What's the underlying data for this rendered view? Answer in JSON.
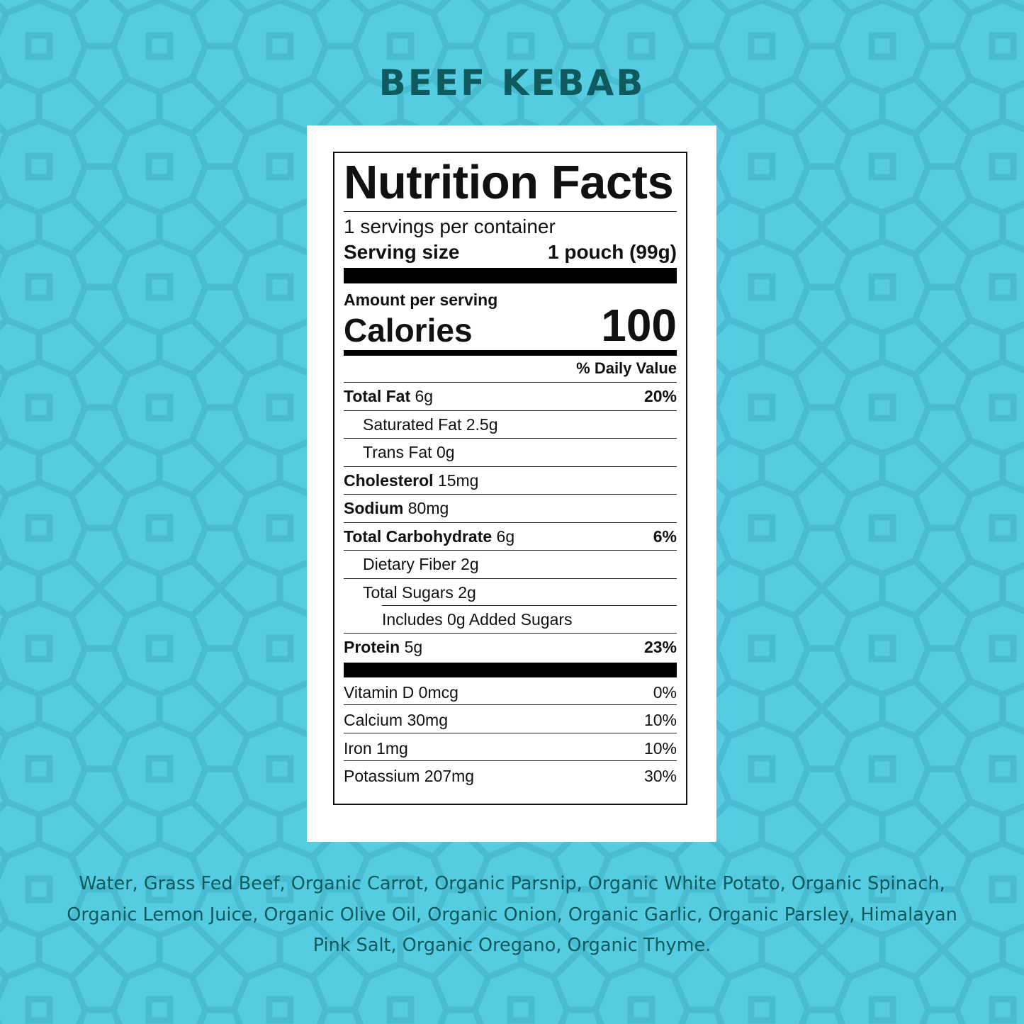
{
  "product_title": "BEEF KEBAB",
  "colors": {
    "background": "#55cce0",
    "pattern": "#48bdd2",
    "title_text": "#0e5a5f"
  },
  "nutrition": {
    "title": "Nutrition Facts",
    "servings_per_container": "1 servings per container",
    "serving_size_label": "Serving size",
    "serving_size_value": "1 pouch (99g)",
    "amount_per_serving": "Amount per serving",
    "calories_label": "Calories",
    "calories_value": "100",
    "daily_value_header": "% Daily Value",
    "nutrients": [
      {
        "name": "Total Fat",
        "amount": "6g",
        "dv": "20%"
      },
      {
        "name": "Saturated Fat",
        "amount": "2.5g",
        "dv": ""
      },
      {
        "name": "Trans Fat",
        "amount": "0g",
        "dv": ""
      },
      {
        "name": "Cholesterol",
        "amount": "15mg",
        "dv": ""
      },
      {
        "name": "Sodium",
        "amount": "80mg",
        "dv": ""
      },
      {
        "name": "Total Carbohydrate",
        "amount": "6g",
        "dv": "6%"
      },
      {
        "name": "Dietary Fiber",
        "amount": "2g",
        "dv": ""
      },
      {
        "name": "Total Sugars",
        "amount": "2g",
        "dv": ""
      },
      {
        "name": "Includes 0g Added Sugars",
        "amount": "",
        "dv": ""
      },
      {
        "name": "Protein",
        "amount": "5g",
        "dv": "23%"
      }
    ],
    "vitamins": [
      {
        "name": "Vitamin D 0mcg",
        "dv": "0%"
      },
      {
        "name": "Calcium 30mg",
        "dv": "10%"
      },
      {
        "name": "Iron 1mg",
        "dv": "10%"
      },
      {
        "name": "Potassium 207mg",
        "dv": "30%"
      }
    ]
  },
  "ingredients": "Water, Grass Fed Beef, Organic Carrot, Organic Parsnip, Organic White Potato, Organic Spinach, Organic Lemon Juice, Organic Olive Oil, Organic Onion, Organic Garlic, Organic Parsley, Himalayan Pink Salt, Organic Oregano, Organic Thyme."
}
